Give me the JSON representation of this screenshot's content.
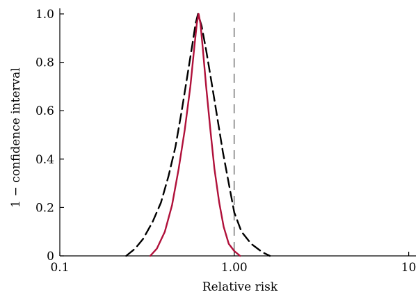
{
  "chart_data": {
    "type": "line",
    "xlabel": "Relative risk",
    "ylabel": "1 − confidence interval",
    "x_scale": "log",
    "xlim": [
      0.1,
      11
    ],
    "ylim": [
      0,
      1
    ],
    "x_ticks": [
      0.1,
      1,
      10
    ],
    "x_tick_labels": [
      "0.1",
      "1.00",
      "10"
    ],
    "y_ticks": [
      0,
      0.2,
      0.4,
      0.6,
      0.8,
      1.0
    ],
    "y_tick_labels": [
      "0",
      "0.2",
      "0.4",
      "0.6",
      "0.8",
      "1.0"
    ],
    "reference_line": {
      "x": 1.0,
      "color": "#a6a6a6",
      "style": "dashed"
    },
    "series": [
      {
        "color": "#000000",
        "style": "dashed",
        "points": [
          [
            0.24,
            0.0
          ],
          [
            0.27,
            0.03
          ],
          [
            0.3,
            0.07
          ],
          [
            0.34,
            0.14
          ],
          [
            0.38,
            0.22
          ],
          [
            0.42,
            0.33
          ],
          [
            0.46,
            0.45
          ],
          [
            0.5,
            0.6
          ],
          [
            0.54,
            0.75
          ],
          [
            0.58,
            0.89
          ],
          [
            0.6,
            0.96
          ],
          [
            0.62,
            1.0
          ],
          [
            0.65,
            0.95
          ],
          [
            0.69,
            0.85
          ],
          [
            0.74,
            0.72
          ],
          [
            0.8,
            0.57
          ],
          [
            0.86,
            0.43
          ],
          [
            0.93,
            0.3
          ],
          [
            1.0,
            0.18
          ],
          [
            1.1,
            0.1
          ],
          [
            1.25,
            0.05
          ],
          [
            1.45,
            0.015
          ],
          [
            1.6,
            0.0
          ]
        ]
      },
      {
        "color": "#b0103a",
        "style": "solid",
        "points": [
          [
            0.33,
            0.0
          ],
          [
            0.36,
            0.03
          ],
          [
            0.4,
            0.1
          ],
          [
            0.44,
            0.21
          ],
          [
            0.48,
            0.36
          ],
          [
            0.52,
            0.52
          ],
          [
            0.56,
            0.7
          ],
          [
            0.59,
            0.86
          ],
          [
            0.61,
            0.96
          ],
          [
            0.625,
            1.0
          ],
          [
            0.64,
            0.96
          ],
          [
            0.66,
            0.86
          ],
          [
            0.69,
            0.7
          ],
          [
            0.73,
            0.52
          ],
          [
            0.77,
            0.36
          ],
          [
            0.82,
            0.22
          ],
          [
            0.87,
            0.12
          ],
          [
            0.93,
            0.05
          ],
          [
            1.0,
            0.02
          ],
          [
            1.08,
            0.0
          ]
        ]
      }
    ]
  }
}
